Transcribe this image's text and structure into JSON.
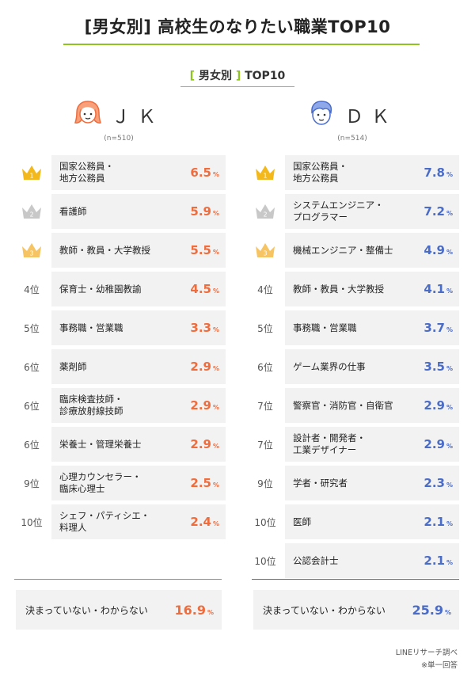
{
  "title": "[男女別] 高校生のなりたい職業TOP10",
  "subtitle": {
    "open": "[",
    "text": " 男女別 ",
    "close": "]",
    "suffix": " TOP10"
  },
  "colors": {
    "accent_green": "#8fc31f",
    "jk_orange": "#ef6c3d",
    "dk_blue": "#4a6cc9",
    "gold": "#f3b91c",
    "silver": "#c8c8c8",
    "bronze": "#f6c463",
    "card_bg": "#f2f2f2"
  },
  "unit": "%",
  "chart_data": [
    {
      "type": "table",
      "group": "ＪＫ",
      "n": "(n=510)",
      "icon": "girl-face-icon",
      "rows": [
        {
          "rank": 1,
          "rank_label": "1",
          "job_lines": [
            "国家公務員・",
            "地方公務員"
          ],
          "value": 6.5,
          "value_text": "6.5"
        },
        {
          "rank": 2,
          "rank_label": "2",
          "job_lines": [
            "看護師"
          ],
          "value": 5.9,
          "value_text": "5.9"
        },
        {
          "rank": 3,
          "rank_label": "3",
          "job_lines": [
            "教師・教員・大学教授"
          ],
          "value": 5.5,
          "value_text": "5.5"
        },
        {
          "rank": 4,
          "rank_label": "4位",
          "job_lines": [
            "保育士・幼稚園教諭"
          ],
          "value": 4.5,
          "value_text": "4.5"
        },
        {
          "rank": 5,
          "rank_label": "5位",
          "job_lines": [
            "事務職・営業職"
          ],
          "value": 3.3,
          "value_text": "3.3"
        },
        {
          "rank": 6,
          "rank_label": "6位",
          "job_lines": [
            "薬剤師"
          ],
          "value": 2.9,
          "value_text": "2.9"
        },
        {
          "rank": 6,
          "rank_label": "6位",
          "job_lines": [
            "臨床検査技師・",
            "診療放射線技師"
          ],
          "value": 2.9,
          "value_text": "2.9"
        },
        {
          "rank": 6,
          "rank_label": "6位",
          "job_lines": [
            "栄養士・管理栄養士"
          ],
          "value": 2.9,
          "value_text": "2.9"
        },
        {
          "rank": 9,
          "rank_label": "9位",
          "job_lines": [
            "心理カウンセラー・",
            "臨床心理士"
          ],
          "value": 2.5,
          "value_text": "2.5"
        },
        {
          "rank": 10,
          "rank_label": "10位",
          "job_lines": [
            "シェフ・パティシエ・",
            "料理人"
          ],
          "value": 2.4,
          "value_text": "2.4"
        }
      ],
      "undecided": {
        "label": "決まっていない・わからない",
        "value": 16.9,
        "value_text": "16.9"
      }
    },
    {
      "type": "table",
      "group": "ＤＫ",
      "n": "(n=514)",
      "icon": "boy-face-icon",
      "rows": [
        {
          "rank": 1,
          "rank_label": "1",
          "job_lines": [
            "国家公務員・",
            "地方公務員"
          ],
          "value": 7.8,
          "value_text": "7.8"
        },
        {
          "rank": 2,
          "rank_label": "2",
          "job_lines": [
            "システムエンジニア・",
            "プログラマー"
          ],
          "value": 7.2,
          "value_text": "7.2"
        },
        {
          "rank": 3,
          "rank_label": "3",
          "job_lines": [
            "機械エンジニア・整備士"
          ],
          "value": 4.9,
          "value_text": "4.9"
        },
        {
          "rank": 4,
          "rank_label": "4位",
          "job_lines": [
            "教師・教員・大学教授"
          ],
          "value": 4.1,
          "value_text": "4.1"
        },
        {
          "rank": 5,
          "rank_label": "5位",
          "job_lines": [
            "事務職・営業職"
          ],
          "value": 3.7,
          "value_text": "3.7"
        },
        {
          "rank": 6,
          "rank_label": "6位",
          "job_lines": [
            "ゲーム業界の仕事"
          ],
          "value": 3.5,
          "value_text": "3.5"
        },
        {
          "rank": 7,
          "rank_label": "7位",
          "job_lines": [
            "警察官・消防官・自衛官"
          ],
          "value": 2.9,
          "value_text": "2.9"
        },
        {
          "rank": 7,
          "rank_label": "7位",
          "job_lines": [
            "設計者・開発者・",
            "工業デザイナー"
          ],
          "value": 2.9,
          "value_text": "2.9"
        },
        {
          "rank": 9,
          "rank_label": "9位",
          "job_lines": [
            "学者・研究者"
          ],
          "value": 2.3,
          "value_text": "2.3"
        },
        {
          "rank": 10,
          "rank_label": "10位",
          "job_lines": [
            "医師"
          ],
          "value": 2.1,
          "value_text": "2.1"
        },
        {
          "rank": 10,
          "rank_label": "10位",
          "job_lines": [
            "公認会計士"
          ],
          "value": 2.1,
          "value_text": "2.1"
        }
      ],
      "undecided": {
        "label": "決まっていない・わからない",
        "value": 25.9,
        "value_text": "25.9"
      }
    }
  ],
  "footer": {
    "source": "LINEリサーチ調べ",
    "note": "※単一回答"
  }
}
